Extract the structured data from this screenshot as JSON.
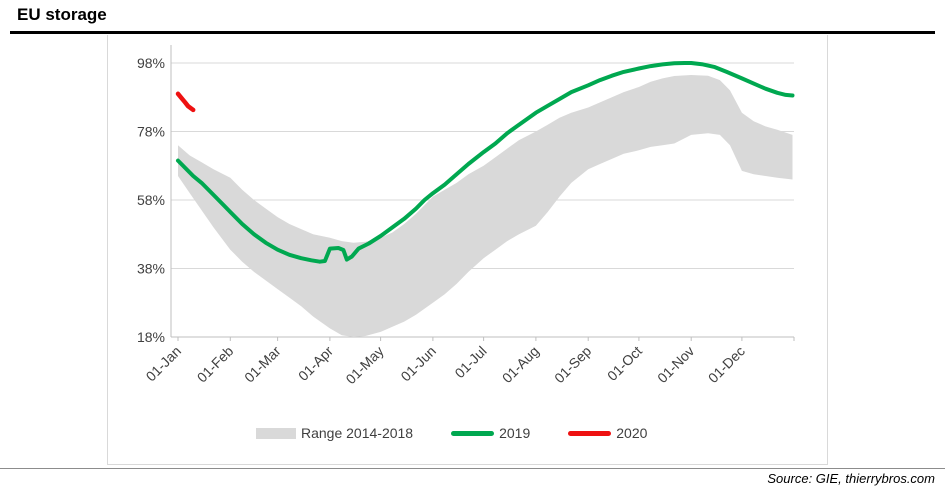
{
  "header": {
    "title": "EU storage"
  },
  "footer": {
    "source": "Source: GIE, thierrybros.com"
  },
  "palette": {
    "grid": "#d9d9d9",
    "axis_line": "#bfbfbf",
    "frame": "#d9d9d9",
    "tick_text": "#404040",
    "band": "#d9d9d9",
    "green": "#00a850",
    "red": "#ee1111",
    "separator": "#8c8c8c",
    "title_rule": "#000000"
  },
  "legend": {
    "items": [
      {
        "label": "Range 2014-2018",
        "swatch": "band",
        "color": "#d9d9d9"
      },
      {
        "label": "2019",
        "swatch": "line",
        "color": "#00a850"
      },
      {
        "label": "2020",
        "swatch": "line",
        "color": "#ee1111"
      }
    ]
  },
  "chart_data": {
    "type": "line",
    "title": "EU storage",
    "xlabel": "",
    "ylabel": "",
    "grid": "horizontal",
    "legend_position": "bottom",
    "y_axis": {
      "unit": "%",
      "min": 18,
      "max": 98,
      "tick_labels": [
        "98%",
        "78%",
        "58%",
        "38%",
        "18%"
      ],
      "tick_values": [
        98,
        78,
        58,
        38,
        18
      ]
    },
    "x_axis": {
      "tick_labels": [
        "01-Jan",
        "01-Feb",
        "01-Mar",
        "01-Apr",
        "01-May",
        "01-Jun",
        "01-Jul",
        "01-Aug",
        "01-Sep",
        "01-Oct",
        "01-Nov",
        "01-Dec"
      ],
      "tick_days": [
        1,
        32,
        60,
        91,
        121,
        152,
        182,
        213,
        244,
        274,
        305,
        335
      ],
      "range_days": [
        1,
        365
      ]
    },
    "series": [
      {
        "name": "Range 2014-2018",
        "type": "band",
        "color": "#d9d9d9",
        "points_day_upper_lower": [
          [
            1,
            74,
            65
          ],
          [
            8,
            71,
            60
          ],
          [
            15,
            69,
            55
          ],
          [
            22,
            67,
            50
          ],
          [
            32,
            64.5,
            43.5
          ],
          [
            39,
            61,
            40
          ],
          [
            46,
            58,
            37
          ],
          [
            53,
            55.5,
            34.5
          ],
          [
            60,
            53,
            32
          ],
          [
            67,
            51,
            29.5
          ],
          [
            74,
            49.5,
            27
          ],
          [
            81,
            48,
            24
          ],
          [
            91,
            47,
            20.5
          ],
          [
            98,
            46,
            18.5
          ],
          [
            105,
            45.5,
            18
          ],
          [
            112,
            45.8,
            18.3
          ],
          [
            121,
            47,
            19.5
          ],
          [
            128,
            48.5,
            21
          ],
          [
            135,
            51,
            22.5
          ],
          [
            142,
            54,
            24.5
          ],
          [
            152,
            59,
            28
          ],
          [
            159,
            61,
            30.5
          ],
          [
            166,
            63,
            33.5
          ],
          [
            173,
            65.5,
            37
          ],
          [
            182,
            68,
            41
          ],
          [
            189,
            70.5,
            43.5
          ],
          [
            196,
            73,
            46
          ],
          [
            203,
            75.5,
            48
          ],
          [
            213,
            78,
            50.5
          ],
          [
            220,
            80,
            54.5
          ],
          [
            227,
            82,
            59
          ],
          [
            234,
            83.5,
            63
          ],
          [
            244,
            85,
            67
          ],
          [
            251,
            86.5,
            68.5
          ],
          [
            258,
            88,
            70
          ],
          [
            265,
            89.5,
            71.5
          ],
          [
            274,
            91,
            72.5
          ],
          [
            281,
            92.5,
            73.5
          ],
          [
            288,
            93.5,
            74
          ],
          [
            295,
            94.2,
            74.5
          ],
          [
            305,
            94.5,
            77
          ],
          [
            315,
            94.3,
            77.5
          ],
          [
            322,
            93,
            77
          ],
          [
            328,
            90,
            74
          ],
          [
            335,
            83.5,
            66.5
          ],
          [
            342,
            81,
            65.5
          ],
          [
            349,
            79.5,
            65
          ],
          [
            356,
            78.5,
            64.5
          ],
          [
            365,
            77,
            64
          ]
        ]
      },
      {
        "name": "2019",
        "type": "line",
        "color": "#00a850",
        "stroke_width": 4,
        "days": [
          1,
          5,
          10,
          15,
          22,
          28,
          32,
          39,
          46,
          53,
          60,
          67,
          74,
          80,
          85,
          88,
          91,
          96,
          99,
          101,
          104,
          108,
          114,
          121,
          128,
          135,
          142,
          147,
          152,
          159,
          166,
          173,
          182,
          189,
          196,
          203,
          213,
          220,
          227,
          234,
          244,
          251,
          258,
          265,
          274,
          281,
          288,
          295,
          301,
          305,
          312,
          319,
          326,
          335,
          342,
          349,
          356,
          361,
          365
        ],
        "values": [
          69.5,
          67.5,
          65,
          63,
          59.5,
          56.5,
          54.5,
          51,
          48,
          45.5,
          43.5,
          42,
          41,
          40.4,
          40,
          40.2,
          43.8,
          44,
          43.4,
          40.6,
          41.5,
          43.8,
          45.3,
          47.5,
          50,
          52.5,
          55.5,
          58,
          60,
          62.5,
          65.5,
          68.5,
          72,
          74.5,
          77.5,
          80,
          83.5,
          85.5,
          87.5,
          89.5,
          91.5,
          93,
          94.3,
          95.4,
          96.4,
          97.1,
          97.6,
          97.9,
          98,
          98,
          97.6,
          96.8,
          95.4,
          93.5,
          92,
          90.5,
          89.3,
          88.7,
          88.5
        ]
      },
      {
        "name": "2020",
        "type": "line",
        "color": "#ee1111",
        "stroke_width": 4.5,
        "days": [
          1,
          3,
          5,
          7,
          10
        ],
        "values": [
          89,
          87.8,
          86.6,
          85.4,
          84.3
        ]
      }
    ]
  }
}
